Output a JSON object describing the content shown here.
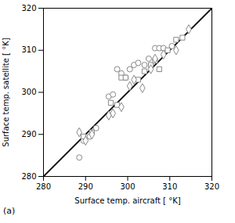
{
  "chart_data": {
    "type": "scatter",
    "xlabel": "Surface temp. aircraft [ °K]",
    "ylabel": "Surface temp. satellite [ °K]",
    "annotations": [
      "(a)"
    ],
    "xlim": [
      280,
      320
    ],
    "ylim": [
      280,
      320
    ],
    "xticks": [
      280,
      290,
      300,
      310,
      320
    ],
    "yticks": [
      280,
      290,
      300,
      310,
      320
    ],
    "series": [
      {
        "type": "line",
        "color": "black",
        "line_style": "solid",
        "x": [
          280,
          320
        ],
        "values": [
          280,
          320
        ]
      },
      {
        "type": "scatter",
        "marker": "circle",
        "color": "#888888",
        "x": [
          288.5,
          289.5,
          291.0,
          292.5,
          295.5,
          296.5,
          297.5,
          298.5,
          299.5,
          300.5,
          301.5,
          302.5,
          304.0,
          305.0,
          306.5,
          307.5,
          308.5,
          310.5
        ],
        "values": [
          284.5,
          288.5,
          289.5,
          291.5,
          299.0,
          299.5,
          305.5,
          304.5,
          303.5,
          305.5,
          306.5,
          307.0,
          306.5,
          308.0,
          310.5,
          310.5,
          310.5,
          311.0
        ]
      },
      {
        "type": "scatter",
        "marker": "square",
        "color": "#888888",
        "x": [
          289.5,
          291.5,
          296.0,
          297.5,
          298.5,
          299.5,
          302.5,
          304.0,
          305.5,
          306.5,
          307.5,
          309.5,
          311.5,
          313.0
        ],
        "values": [
          289.5,
          290.5,
          297.5,
          297.0,
          303.5,
          303.5,
          303.0,
          305.0,
          306.5,
          307.5,
          305.5,
          310.0,
          312.5,
          313.0
        ]
      },
      {
        "type": "scatter",
        "marker": "diamond",
        "color": "#888888",
        "x": [
          288.5,
          290.0,
          291.5,
          295.5,
          296.5,
          298.5,
          300.5,
          301.5,
          303.5,
          305.5,
          306.5,
          308.5,
          311.5,
          314.5
        ],
        "values": [
          290.5,
          288.5,
          290.0,
          294.5,
          295.0,
          296.5,
          301.5,
          303.0,
          301.0,
          305.5,
          308.0,
          309.0,
          310.0,
          315.0
        ]
      }
    ]
  }
}
